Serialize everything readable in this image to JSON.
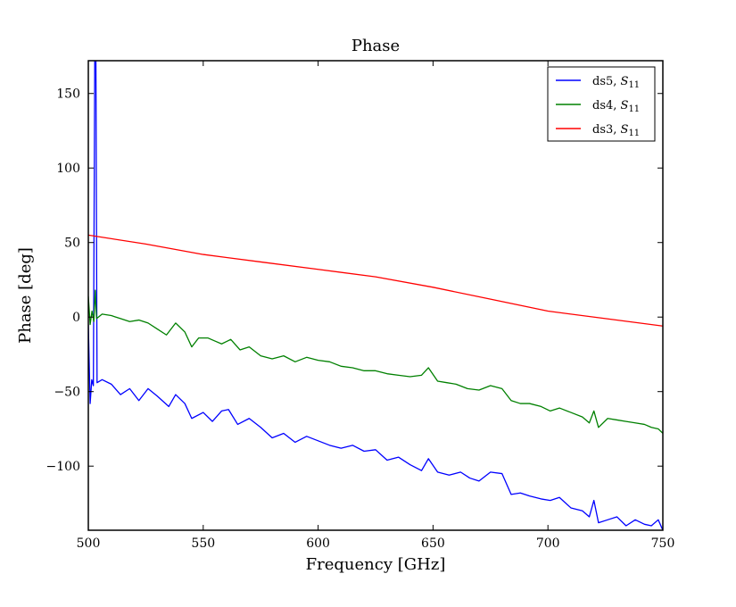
{
  "chart_data": {
    "type": "line",
    "title": "Phase",
    "xlabel": "Frequency [GHz]",
    "ylabel": "Phase [deg]",
    "xlim": [
      500,
      750
    ],
    "ylim": [
      -143,
      172
    ],
    "xticks": [
      500,
      550,
      600,
      650,
      700,
      750
    ],
    "yticks": [
      -100,
      -50,
      0,
      50,
      100,
      150
    ],
    "xtick_labels": [
      "500",
      "550",
      "600",
      "650",
      "700",
      "750"
    ],
    "ytick_labels": [
      "−100",
      "−50",
      "0",
      "50",
      "100",
      "150"
    ],
    "grid": false,
    "legend_position": "top-right",
    "series": [
      {
        "name": "ds5, S11",
        "legend_prefix": "ds5, ",
        "legend_symbol": "S",
        "legend_subscript": "11",
        "color": "#0000ff",
        "points": [
          [
            500,
            -5
          ],
          [
            500.8,
            -58
          ],
          [
            501.5,
            -42
          ],
          [
            502.2,
            -46
          ],
          [
            502.8,
            172
          ],
          [
            503.3,
            172
          ],
          [
            503.8,
            -44
          ],
          [
            506,
            -42
          ],
          [
            510,
            -45
          ],
          [
            514,
            -52
          ],
          [
            518,
            -48
          ],
          [
            522,
            -56
          ],
          [
            526,
            -48
          ],
          [
            530,
            -53
          ],
          [
            535,
            -60
          ],
          [
            538,
            -52
          ],
          [
            542,
            -58
          ],
          [
            545,
            -68
          ],
          [
            550,
            -64
          ],
          [
            554,
            -70
          ],
          [
            558,
            -63
          ],
          [
            561,
            -62
          ],
          [
            565,
            -72
          ],
          [
            570,
            -68
          ],
          [
            575,
            -74
          ],
          [
            580,
            -81
          ],
          [
            585,
            -78
          ],
          [
            590,
            -84
          ],
          [
            595,
            -80
          ],
          [
            600,
            -83
          ],
          [
            605,
            -86
          ],
          [
            610,
            -88
          ],
          [
            615,
            -86
          ],
          [
            620,
            -90
          ],
          [
            625,
            -89
          ],
          [
            630,
            -96
          ],
          [
            635,
            -94
          ],
          [
            640,
            -99
          ],
          [
            645,
            -103
          ],
          [
            648,
            -95
          ],
          [
            652,
            -104
          ],
          [
            657,
            -106
          ],
          [
            662,
            -104
          ],
          [
            666,
            -108
          ],
          [
            670,
            -110
          ],
          [
            675,
            -104
          ],
          [
            680,
            -105
          ],
          [
            684,
            -119
          ],
          [
            688,
            -118
          ],
          [
            692,
            -120
          ],
          [
            697,
            -122
          ],
          [
            701,
            -123
          ],
          [
            705,
            -121
          ],
          [
            710,
            -128
          ],
          [
            715,
            -130
          ],
          [
            718,
            -134
          ],
          [
            720,
            -123
          ],
          [
            722,
            -138
          ],
          [
            726,
            -136
          ],
          [
            730,
            -134
          ],
          [
            734,
            -140
          ],
          [
            738,
            -136
          ],
          [
            742,
            -139
          ],
          [
            745,
            -140
          ],
          [
            748,
            -136
          ],
          [
            750,
            -143
          ]
        ]
      },
      {
        "name": "ds4, S11",
        "legend_prefix": "ds4, ",
        "legend_symbol": "S",
        "legend_subscript": "11",
        "color": "#008000",
        "points": [
          [
            500,
            14
          ],
          [
            500.8,
            -5
          ],
          [
            501.6,
            4
          ],
          [
            502.4,
            -3
          ],
          [
            503,
            18
          ],
          [
            503.6,
            -1
          ],
          [
            506,
            2
          ],
          [
            510,
            1
          ],
          [
            514,
            -1
          ],
          [
            518,
            -3
          ],
          [
            522,
            -2
          ],
          [
            526,
            -4
          ],
          [
            530,
            -8
          ],
          [
            534,
            -12
          ],
          [
            538,
            -4
          ],
          [
            542,
            -10
          ],
          [
            545,
            -20
          ],
          [
            548,
            -14
          ],
          [
            552,
            -14
          ],
          [
            555,
            -16
          ],
          [
            558,
            -18
          ],
          [
            562,
            -15
          ],
          [
            566,
            -22
          ],
          [
            570,
            -20
          ],
          [
            575,
            -26
          ],
          [
            580,
            -28
          ],
          [
            585,
            -26
          ],
          [
            590,
            -30
          ],
          [
            595,
            -27
          ],
          [
            600,
            -29
          ],
          [
            605,
            -30
          ],
          [
            610,
            -33
          ],
          [
            615,
            -34
          ],
          [
            620,
            -36
          ],
          [
            625,
            -36
          ],
          [
            630,
            -38
          ],
          [
            635,
            -39
          ],
          [
            640,
            -40
          ],
          [
            645,
            -39
          ],
          [
            648,
            -34
          ],
          [
            652,
            -43
          ],
          [
            656,
            -44
          ],
          [
            660,
            -45
          ],
          [
            665,
            -48
          ],
          [
            670,
            -49
          ],
          [
            675,
            -46
          ],
          [
            680,
            -48
          ],
          [
            684,
            -56
          ],
          [
            688,
            -58
          ],
          [
            692,
            -58
          ],
          [
            697,
            -60
          ],
          [
            701,
            -63
          ],
          [
            705,
            -61
          ],
          [
            710,
            -64
          ],
          [
            715,
            -67
          ],
          [
            718,
            -71
          ],
          [
            720,
            -63
          ],
          [
            722,
            -74
          ],
          [
            726,
            -68
          ],
          [
            730,
            -69
          ],
          [
            734,
            -70
          ],
          [
            738,
            -71
          ],
          [
            742,
            -72
          ],
          [
            745,
            -74
          ],
          [
            748,
            -75
          ],
          [
            750,
            -78
          ]
        ]
      },
      {
        "name": "ds3, S11",
        "legend_prefix": "ds3, ",
        "legend_symbol": "S",
        "legend_subscript": "11",
        "color": "#ff0000",
        "points": [
          [
            500,
            55
          ],
          [
            525,
            49
          ],
          [
            550,
            42
          ],
          [
            575,
            37
          ],
          [
            600,
            32
          ],
          [
            625,
            27
          ],
          [
            650,
            20
          ],
          [
            675,
            12
          ],
          [
            700,
            4
          ],
          [
            725,
            -1
          ],
          [
            750,
            -6
          ]
        ]
      }
    ]
  }
}
